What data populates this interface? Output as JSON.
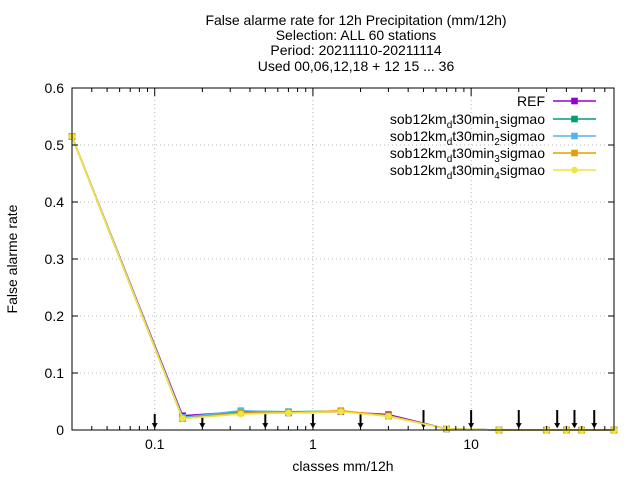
{
  "chart_data": {
    "type": "line",
    "title_lines": [
      "False alarme rate  for 12h Precipitation (mm/12h)",
      "Selection: ALL     60 stations",
      "Period: 20211110-20211114",
      "Used 00,06,12,18 + 12 15 ... 36"
    ],
    "xlabel": "classes mm/12h",
    "ylabel": "False alarme rate",
    "xscale": "log",
    "xlim": [
      0.03,
      80
    ],
    "ylim": [
      0,
      0.6
    ],
    "x_ticks": [
      0.1,
      1,
      10
    ],
    "x_tick_labels": [
      "0.1",
      "1",
      "10"
    ],
    "y_ticks": [
      0,
      0.1,
      0.2,
      0.3,
      0.4,
      0.5,
      0.6
    ],
    "y_tick_labels": [
      "0",
      "0.1",
      "0.2",
      "0.3",
      "0.4",
      "0.5",
      "0.6"
    ],
    "grid": true,
    "legend_position": "top-right",
    "x": [
      0.03,
      0.15,
      0.35,
      0.7,
      1.5,
      3,
      7,
      15,
      30,
      40,
      50,
      80
    ],
    "series": [
      {
        "name": "REF",
        "color": "#9400d3",
        "marker": "square",
        "values": [
          0.515,
          0.025,
          0.032,
          0.03,
          0.032,
          0.027,
          0.002,
          0,
          0,
          0,
          0,
          0
        ]
      },
      {
        "name_parts": [
          "sob12km",
          "d",
          "t30min",
          "1",
          "sigmao"
        ],
        "color": "#009e73",
        "marker": "square",
        "values": [
          0.515,
          0.02,
          0.033,
          0.032,
          0.033,
          0.025,
          0.002,
          0,
          0,
          0,
          0,
          0
        ]
      },
      {
        "name_parts": [
          "sob12km",
          "d",
          "t30min",
          "2",
          "sigmao"
        ],
        "color": "#56b4e9",
        "marker": "square",
        "values": [
          0.515,
          0.022,
          0.034,
          0.031,
          0.033,
          0.024,
          0.002,
          0,
          0,
          0,
          0,
          0
        ]
      },
      {
        "name_parts": [
          "sob12km",
          "d",
          "t30min",
          "3",
          "sigmao"
        ],
        "color": "#e69f00",
        "marker": "square",
        "values": [
          0.515,
          0.02,
          0.03,
          0.03,
          0.034,
          0.025,
          0.002,
          0,
          0,
          0,
          0,
          0
        ]
      },
      {
        "name_parts": [
          "sob12km",
          "d",
          "t30min",
          "4",
          "sigmao"
        ],
        "color": "#f0e442",
        "marker": "circle",
        "values": [
          0.515,
          0.02,
          0.028,
          0.03,
          0.032,
          0.024,
          0.002,
          0,
          0,
          0,
          0,
          0
        ]
      }
    ],
    "spread_x": [
      0.1,
      0.2,
      0.5,
      1,
      2,
      5,
      10,
      20,
      35,
      45,
      60
    ],
    "spread_ranges": [
      [
        0.005,
        0.028
      ],
      [
        0.005,
        0.025
      ],
      [
        0.005,
        0.028
      ],
      [
        0.005,
        0.028
      ],
      [
        0.005,
        0.028
      ],
      [
        0.005,
        0.035
      ],
      [
        0.005,
        0.035
      ],
      [
        0.005,
        0.035
      ],
      [
        0.005,
        0.035
      ],
      [
        0.005,
        0.035
      ],
      [
        0.005,
        0.035
      ]
    ]
  }
}
